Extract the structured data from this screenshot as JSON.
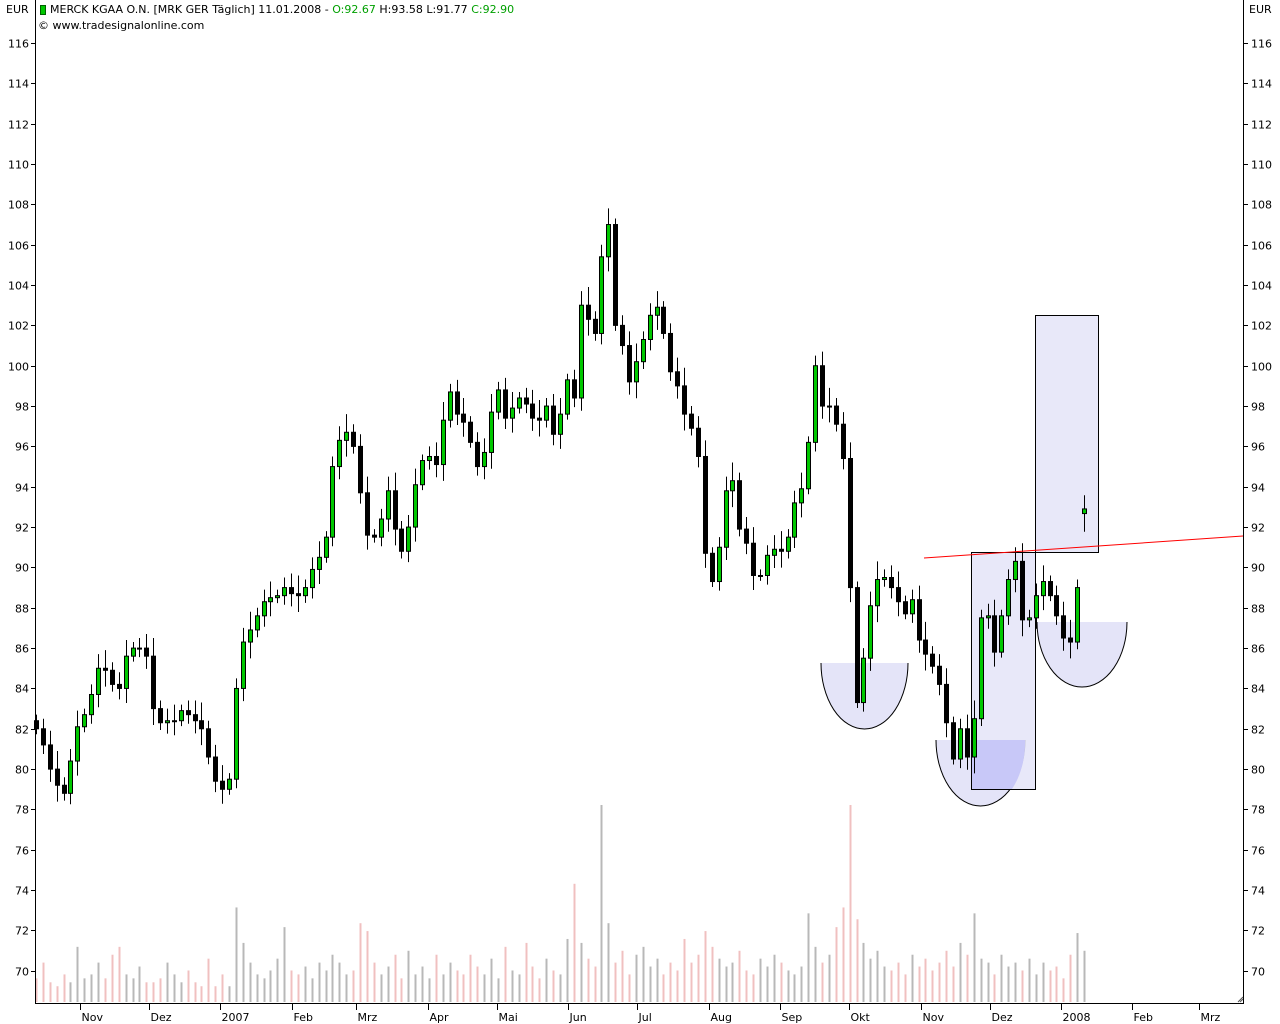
{
  "header": {
    "instrument": "MERCK KGAA O.N. [MRK GER  Täglich] 11.01.2008 - ",
    "open": "O:92.67",
    "high": "H:93.58",
    "low": "L:91.77",
    "close": "C:92.90",
    "copyright": "© www.tradesignalonline.com",
    "currency_left": "EUR",
    "currency_right": "EUR"
  },
  "chart_data": {
    "type": "candlestick",
    "title": "MERCK KGAA O.N. [MRK GER  Täglich] 11.01.2008",
    "ylabel": "EUR",
    "ylim": [
      68.4,
      118
    ],
    "yticks": [
      70,
      72,
      74,
      76,
      78,
      80,
      82,
      84,
      86,
      88,
      90,
      92,
      94,
      96,
      98,
      100,
      102,
      104,
      106,
      108,
      110,
      112,
      114,
      116
    ],
    "x_range": [
      "2006-10-13",
      "2008-03-20"
    ],
    "first_candle": "2006-10-13",
    "last_candle": "2008-01-11",
    "xticks": [
      {
        "label": "Nov",
        "date": "2006-11-01"
      },
      {
        "label": "Dez",
        "date": "2006-12-01"
      },
      {
        "label": "2007",
        "date": "2007-01-01"
      },
      {
        "label": "Feb",
        "date": "2007-02-01"
      },
      {
        "label": "Mrz",
        "date": "2007-03-01"
      },
      {
        "label": "Apr",
        "date": "2007-04-01"
      },
      {
        "label": "Mai",
        "date": "2007-05-01"
      },
      {
        "label": "Jun",
        "date": "2007-06-01"
      },
      {
        "label": "Jul",
        "date": "2007-07-01"
      },
      {
        "label": "Aug",
        "date": "2007-08-01"
      },
      {
        "label": "Sep",
        "date": "2007-09-01"
      },
      {
        "label": "Okt",
        "date": "2007-10-01"
      },
      {
        "label": "Nov",
        "date": "2007-11-01"
      },
      {
        "label": "Dez",
        "date": "2007-12-01"
      },
      {
        "label": "2008",
        "date": "2008-01-01"
      },
      {
        "label": "Feb",
        "date": "2008-02-01"
      },
      {
        "label": "Mrz",
        "date": "2008-03-01"
      }
    ],
    "last_ohlc": {
      "open": 92.67,
      "high": 93.58,
      "low": 91.77,
      "close": 92.9
    },
    "close": [
      82,
      81.2,
      80,
      79.2,
      78.8,
      80.4,
      82.1,
      82.7,
      83.7,
      85,
      84.9,
      84.2,
      84,
      85.6,
      86,
      86,
      85.6,
      83,
      82.3,
      82.4,
      82.4,
      82.9,
      82.7,
      82.4,
      82,
      80.6,
      79.4,
      79,
      79.5,
      84,
      86.3,
      86.9,
      87.6,
      88.3,
      88.5,
      88.6,
      89,
      88.7,
      88.6,
      89,
      89.9,
      90.5,
      91.5,
      95,
      96.3,
      96.7,
      96,
      93.7,
      91.6,
      91.5,
      92.4,
      93.8,
      91.9,
      90.8,
      92,
      94.1,
      95.3,
      95.5,
      95.1,
      97.3,
      98.7,
      97.6,
      97.2,
      96.2,
      95,
      95.7,
      97.7,
      98.8,
      97.4,
      97.9,
      98.4,
      98.1,
      97.4,
      97.3,
      98,
      96.6,
      97.6,
      99.3,
      98.4,
      103,
      102.3,
      101.6,
      105.4,
      107,
      102,
      101,
      99.2,
      100.2,
      101.3,
      102.5,
      102.9,
      101.6,
      99.7,
      99,
      97.6,
      96.9,
      95.5,
      90.7,
      89.3,
      91,
      93.8,
      94.3,
      91.9,
      91.2,
      89.6,
      89.6,
      90.6,
      90.9,
      90.8,
      91.5,
      93.2,
      93.9,
      96.2,
      100,
      98,
      98,
      97.1,
      95.4,
      89,
      83.3,
      85.5,
      88.1,
      89.4,
      89.5,
      89,
      88.3,
      87.7,
      88.4,
      86.4,
      85.7,
      85.1,
      84.2,
      82.3,
      80.5,
      82,
      80.6,
      82.5,
      87.5,
      87.6,
      85.8,
      87.6,
      89.4,
      90.3,
      87.4,
      87.5,
      88.6,
      89.3,
      88.6,
      87.6,
      86.5,
      86.3,
      89,
      92.9
    ],
    "volume_relative": [
      12,
      20,
      10,
      8,
      14,
      10,
      28,
      12,
      14,
      20,
      12,
      24,
      28,
      14,
      12,
      18,
      10,
      10,
      12,
      20,
      14,
      10,
      16,
      10,
      8,
      22,
      8,
      14,
      8,
      48,
      30,
      20,
      14,
      12,
      16,
      22,
      38,
      16,
      14,
      18,
      12,
      20,
      16,
      24,
      20,
      14,
      16,
      40,
      36,
      20,
      14,
      18,
      24,
      12,
      26,
      14,
      18,
      12,
      24,
      14,
      20,
      16,
      14,
      24,
      18,
      14,
      22,
      12,
      28,
      16,
      14,
      30,
      18,
      12,
      22,
      16,
      14,
      32,
      60,
      30,
      22,
      18,
      100,
      40,
      20,
      26,
      14,
      24,
      28,
      18,
      22,
      14,
      20,
      16,
      32,
      20,
      24,
      36,
      28,
      22,
      18,
      20,
      26,
      16,
      14,
      22,
      18,
      24,
      20,
      16,
      14,
      18,
      45,
      28,
      20,
      24,
      38,
      48,
      100,
      42,
      30,
      22,
      26,
      18,
      16,
      20,
      14,
      24,
      18,
      22,
      16,
      20,
      26,
      18,
      30,
      24,
      45,
      22,
      20,
      14,
      24,
      18,
      20,
      16,
      22,
      14,
      20,
      16,
      18,
      12,
      24,
      35,
      26
    ]
  },
  "colors": {
    "up": "#00c800",
    "down": "#000000",
    "volume_up": "#b8b8b8",
    "volume_down": "#f0c0c0",
    "trendline": "#ff0000",
    "overlay": "#e4e4f8",
    "overlay_overlap": "#c8c8f8",
    "header_green": "#00a000"
  }
}
